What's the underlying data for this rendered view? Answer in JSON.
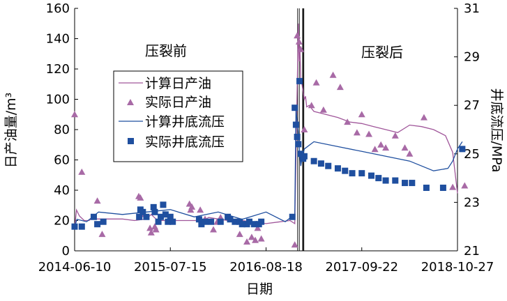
{
  "chart_data": {
    "type": "line",
    "xlabel": "日期",
    "ylabel": "日产油量/m³",
    "y2label": "井底流压/MPa",
    "x_ticks": [
      "2014-06-10",
      "2015-07-15",
      "2016-08-18",
      "2017-09-22",
      "2018-10-27"
    ],
    "x_tick_days": [
      0,
      400,
      800,
      1200,
      1600
    ],
    "x_range_days": [
      0,
      1600
    ],
    "ylim": [
      0,
      160
    ],
    "y_ticks": [
      "0",
      "20",
      "40",
      "60",
      "80",
      "100",
      "120",
      "140",
      "160"
    ],
    "y2lim": [
      21,
      31
    ],
    "y2_ticks": [
      "21",
      "23",
      "25",
      "27",
      "29",
      "31"
    ],
    "grid": false,
    "legend_position": "upper-left-center",
    "annotations": {
      "before": "压裂前",
      "after": "压裂后"
    },
    "colors": {
      "oil": "#a0569a",
      "pressure": "#1f4f9f"
    },
    "series": [
      {
        "name": "计算日产油",
        "axis": "left",
        "style": "line",
        "x": [
          0,
          8,
          20,
          40,
          60,
          70,
          100,
          150,
          200,
          250,
          300,
          320,
          340,
          360,
          380,
          400,
          420,
          450,
          500,
          540,
          560,
          600,
          640,
          700,
          750,
          800,
          850,
          900,
          920,
          935,
          938,
          941,
          945,
          950,
          955,
          960,
          965,
          970,
          980,
          1000,
          1050,
          1100,
          1150,
          1200,
          1250,
          1300,
          1350,
          1400,
          1450,
          1500,
          1550,
          1580,
          1600
        ],
        "values": [
          15,
          27,
          23,
          20,
          20,
          21,
          21,
          21,
          21,
          20,
          21,
          24,
          21,
          20,
          20,
          21,
          20,
          20,
          20,
          20,
          22,
          21,
          20,
          20,
          19,
          18,
          19,
          20,
          18,
          150,
          125,
          135,
          112,
          110,
          105,
          100,
          102,
          95,
          96,
          92,
          90,
          88,
          85,
          84,
          82,
          80,
          78,
          83,
          82,
          80,
          76,
          65,
          38
        ]
      },
      {
        "name": "实际日产油",
        "axis": "left",
        "style": "markers",
        "marker": "triangle",
        "x": [
          0,
          30,
          95,
          115,
          268,
          275,
          290,
          315,
          320,
          335,
          340,
          480,
          485,
          490,
          525,
          545,
          580,
          595,
          610,
          690,
          720,
          740,
          755,
          765,
          780,
          920,
          930,
          938,
          945,
          960,
          990,
          1010,
          1040,
          1080,
          1110,
          1140,
          1180,
          1200,
          1230,
          1255,
          1280,
          1300,
          1340,
          1380,
          1400,
          1460,
          1580,
          1630
        ],
        "values": [
          90,
          52,
          33,
          11,
          36,
          35,
          24,
          15,
          12,
          16,
          14,
          31,
          27,
          29,
          27,
          21,
          14,
          19,
          22,
          11,
          6,
          9,
          7,
          15,
          8,
          4,
          142,
          138,
          133,
          80,
          96,
          111,
          93,
          116,
          108,
          85,
          78,
          90,
          77,
          67,
          70,
          68,
          76,
          68,
          64,
          88,
          42,
          43
        ]
      },
      {
        "name": "计算井底流压",
        "axis": "right",
        "style": "line",
        "x": [
          0,
          10,
          50,
          100,
          200,
          300,
          400,
          500,
          600,
          700,
          800,
          880,
          920,
          925,
          935,
          940,
          945,
          950,
          960,
          1000,
          1100,
          1200,
          1300,
          1400,
          1500,
          1560,
          1580,
          1600,
          1620
        ],
        "values": [
          22.0,
          22.3,
          22.2,
          22.6,
          22.5,
          22.6,
          22.7,
          22.4,
          22.6,
          22.3,
          22.6,
          22.2,
          22.5,
          26.8,
          25.9,
          25.0,
          24.5,
          24.8,
          25.2,
          25.5,
          25.3,
          25.1,
          24.9,
          24.7,
          24.3,
          24.4,
          24.7,
          25.2,
          25.5
        ]
      },
      {
        "name": "实际井底流压",
        "axis": "right",
        "style": "markers",
        "marker": "square",
        "x": [
          0,
          30,
          80,
          95,
          120,
          270,
          275,
          285,
          300,
          330,
          335,
          350,
          360,
          370,
          380,
          390,
          400,
          410,
          520,
          530,
          545,
          570,
          610,
          640,
          650,
          670,
          690,
          700,
          720,
          730,
          750,
          770,
          780,
          910,
          920,
          925,
          930,
          935,
          940,
          945,
          955,
          960,
          1000,
          1030,
          1060,
          1100,
          1130,
          1160,
          1200,
          1240,
          1270,
          1300,
          1340,
          1380,
          1410,
          1470,
          1540,
          1620
        ],
        "values": [
          22.0,
          22.0,
          22.4,
          22.1,
          22.2,
          22.4,
          22.7,
          22.6,
          22.4,
          22.8,
          22.6,
          22.2,
          22.4,
          22.9,
          22.5,
          22.2,
          22.4,
          22.2,
          22.3,
          22.1,
          22.2,
          22.2,
          22.2,
          22.4,
          22.3,
          22.2,
          22.2,
          22.1,
          22.1,
          22.2,
          22.1,
          22.1,
          22.2,
          22.4,
          26.9,
          26.2,
          25.7,
          25.4,
          28.0,
          25.0,
          24.8,
          24.9,
          24.7,
          24.6,
          24.5,
          24.4,
          24.3,
          24.2,
          24.2,
          24.1,
          24.0,
          23.9,
          23.9,
          23.8,
          23.8,
          23.6,
          23.6,
          25.2
        ]
      }
    ]
  }
}
